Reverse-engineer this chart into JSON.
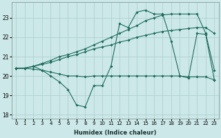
{
  "title": "",
  "xlabel": "Humidex (Indice chaleur)",
  "ylabel": "",
  "bg_color": "#cce8e8",
  "grid_color": "#aacccc",
  "line_color": "#1a6b5a",
  "xlim": [
    -0.5,
    23.5
  ],
  "ylim": [
    17.8,
    23.8
  ],
  "yticks": [
    18,
    19,
    20,
    21,
    22,
    23
  ],
  "xticks": [
    0,
    1,
    2,
    3,
    4,
    5,
    6,
    7,
    8,
    9,
    10,
    11,
    12,
    13,
    14,
    15,
    16,
    17,
    18,
    19,
    20,
    21,
    22,
    23
  ],
  "series": [
    [
      20.4,
      20.4,
      20.5,
      20.3,
      20.0,
      19.7,
      19.3,
      18.5,
      18.4,
      19.5,
      19.5,
      20.5,
      22.7,
      22.5,
      23.3,
      23.4,
      23.2,
      23.2,
      21.8,
      20.0,
      19.9,
      22.2,
      22.15,
      19.8
    ],
    [
      20.4,
      20.4,
      20.5,
      20.6,
      20.7,
      20.85,
      21.0,
      21.1,
      21.25,
      21.4,
      21.5,
      21.6,
      21.75,
      21.85,
      22.0,
      22.1,
      22.2,
      22.3,
      22.35,
      22.4,
      22.45,
      22.5,
      22.5,
      22.2
    ],
    [
      20.4,
      20.4,
      20.35,
      20.3,
      20.2,
      20.1,
      20.0,
      20.0,
      19.95,
      20.0,
      20.0,
      20.0,
      20.0,
      20.0,
      20.0,
      20.0,
      20.0,
      20.0,
      20.0,
      20.0,
      19.95,
      19.95,
      19.95,
      19.8
    ],
    [
      20.4,
      20.4,
      20.5,
      20.65,
      20.8,
      21.0,
      21.1,
      21.25,
      21.4,
      21.6,
      21.8,
      22.0,
      22.2,
      22.4,
      22.6,
      22.85,
      23.0,
      23.15,
      23.2,
      23.2,
      23.2,
      23.2,
      22.2,
      20.3
    ]
  ]
}
